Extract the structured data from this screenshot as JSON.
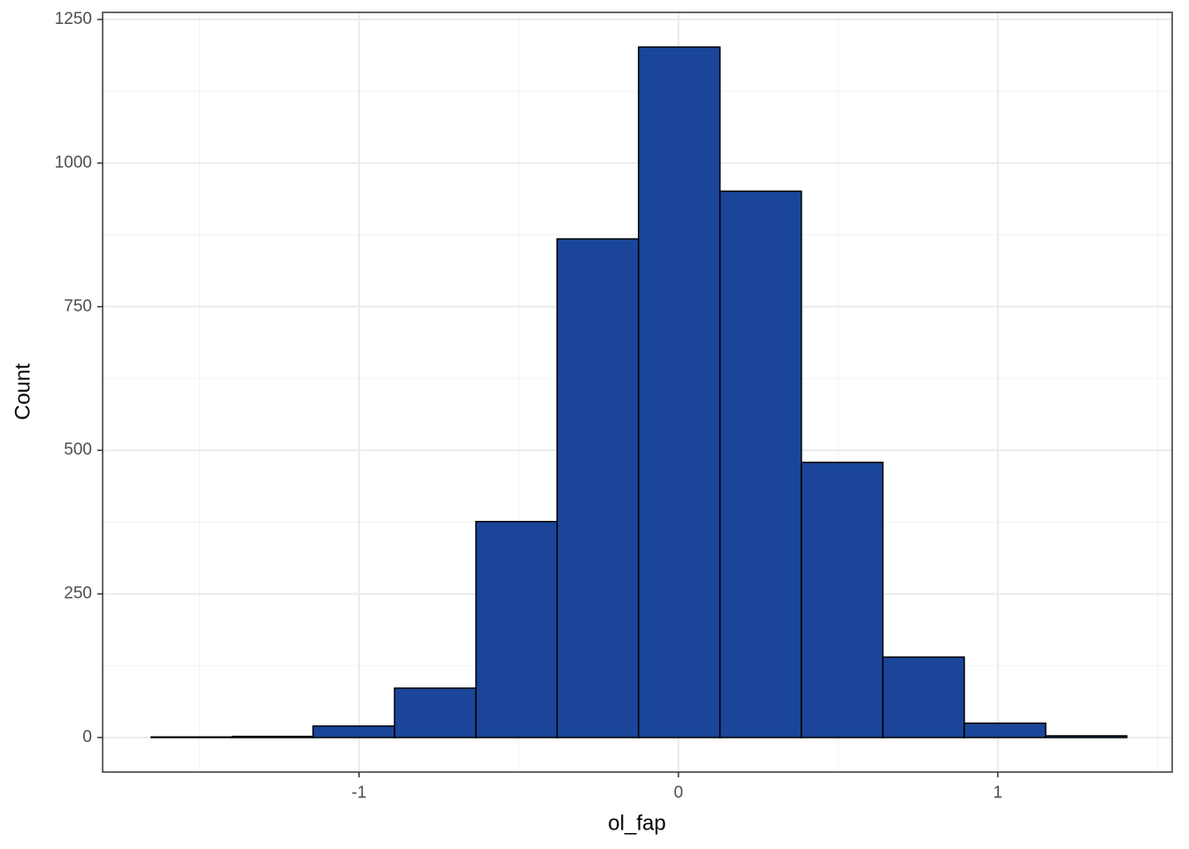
{
  "chart_data": {
    "type": "histogram",
    "x_label": "ol_fap",
    "y_label": "Count",
    "bins": [
      -1.651,
      -1.397,
      -1.144,
      -0.889,
      -0.634,
      -0.38,
      -0.125,
      0.13,
      0.385,
      0.64,
      0.895,
      1.15,
      1.404
    ],
    "counts": [
      1,
      2,
      20,
      86,
      376,
      868,
      1202,
      951,
      479,
      140,
      25,
      3
    ],
    "color": "#1a4599",
    "edge_color": "#000000",
    "xlim": [
      -1.803,
      1.546
    ],
    "ylim": [
      -60.1,
      1262.3
    ],
    "xticks": [
      -1,
      0,
      1
    ],
    "yticks": [
      0,
      250,
      500,
      750,
      1000,
      1250
    ],
    "x_minor_grid": [
      -1.5,
      -0.5,
      0.5,
      1.5
    ],
    "y_minor_grid": [
      125,
      375,
      625,
      875,
      1125
    ],
    "grid": true
  }
}
